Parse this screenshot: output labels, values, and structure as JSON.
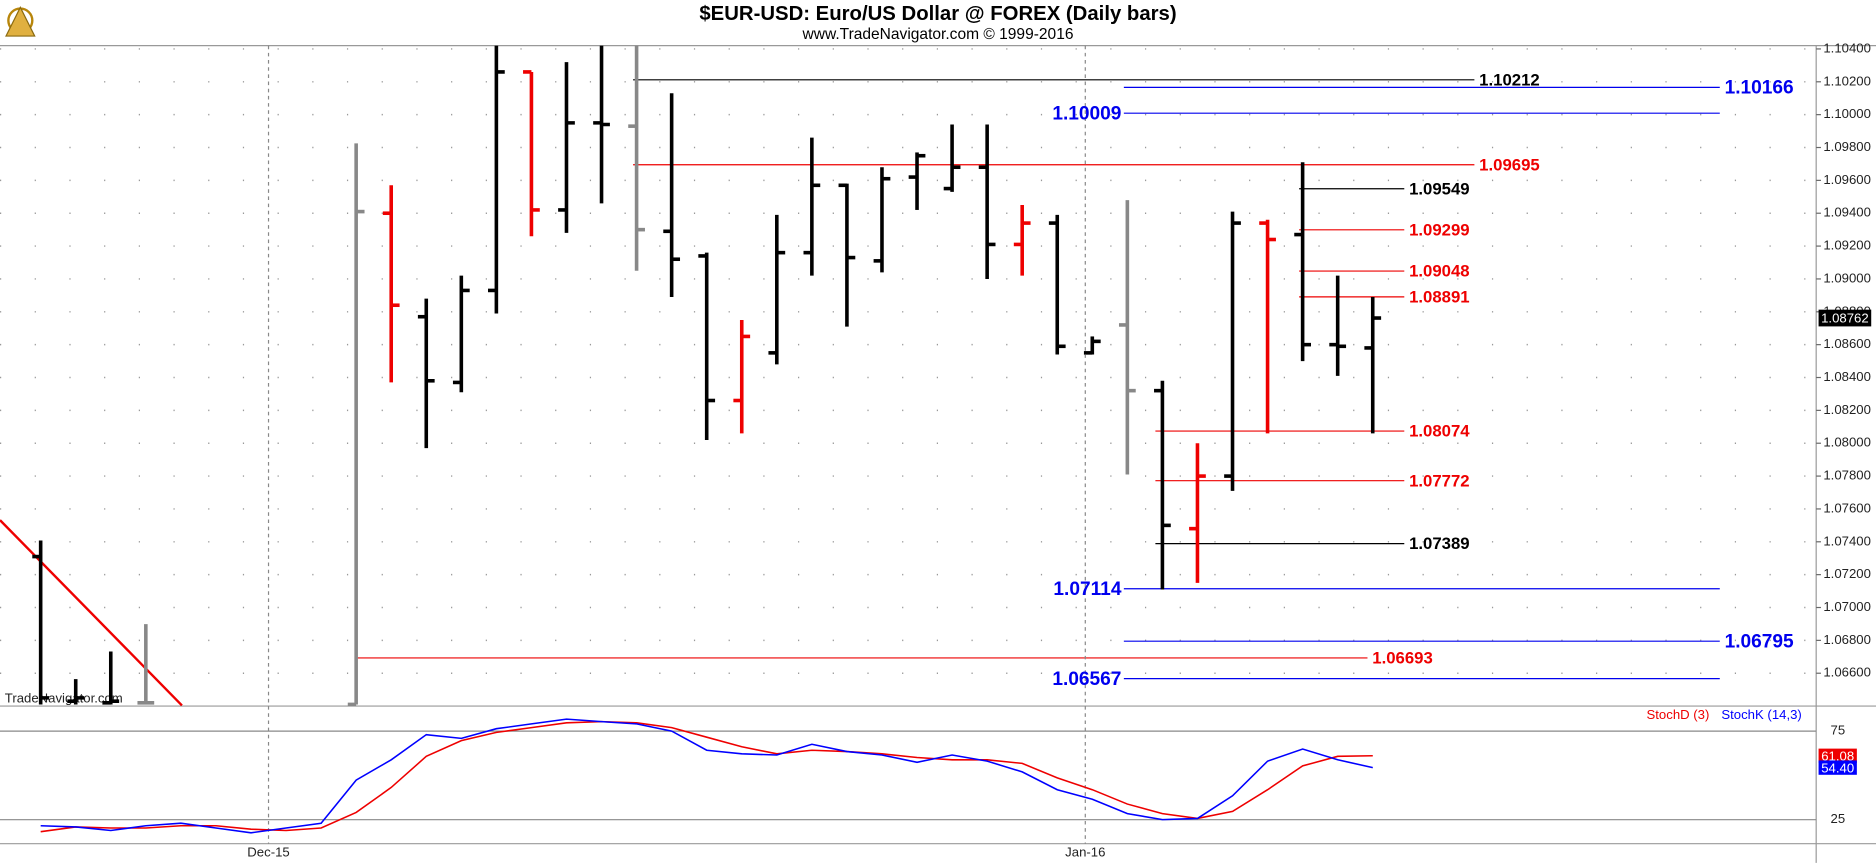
{
  "chart_data": [
    {
      "type": "ohlc",
      "title": "$EUR-USD:  Euro/US Dollar @ FOREX  (Daily bars)",
      "subtitle": "www.TradeNavigator.com © 1999-2016",
      "watermark": "TradeNavigator.com",
      "x": [
        0,
        1,
        2,
        3,
        9,
        10,
        11,
        12,
        13,
        14,
        15,
        16,
        17,
        18,
        19,
        20,
        21,
        22,
        23,
        24,
        25,
        26,
        27,
        28,
        29,
        30,
        31,
        32,
        33,
        34,
        35,
        36,
        37,
        38
      ],
      "open": [
        1.0731,
        1.0643,
        1.0642,
        1.0642,
        1.0641,
        1.094,
        1.0877,
        1.0837,
        1.0893,
        1.1026,
        1.0942,
        1.0995,
        1.0993,
        1.0929,
        1.0914,
        1.0826,
        1.0855,
        1.0916,
        1.0957,
        1.0911,
        1.0962,
        1.0955,
        1.0968,
        1.0921,
        1.0934,
        1.0855,
        1.0872,
        1.0832,
        1.0748,
        1.078,
        1.0934,
        1.0927,
        1.086,
        1.0858
      ],
      "high": [
        1.07408,
        1.06564,
        1.06732,
        1.06899,
        1.09825,
        1.0957,
        1.0888,
        1.0902,
        1.1042,
        1.1026,
        1.1032,
        1.1042,
        1.1042,
        1.1013,
        1.0916,
        1.0875,
        1.0939,
        1.0986,
        1.0958,
        1.0968,
        1.0977,
        1.0994,
        1.0994,
        1.0945,
        1.0939,
        1.0865,
        1.0948,
        1.0838,
        1.08,
        1.0941,
        1.0936,
        1.0971,
        1.0902,
        1.0889
      ],
      "low": [
        1.0641,
        1.0641,
        1.0641,
        1.0641,
        1.0641,
        1.0837,
        1.0797,
        1.0831,
        1.0879,
        1.0926,
        1.0928,
        1.0946,
        1.0905,
        1.0889,
        1.0802,
        1.0806,
        1.0848,
        1.0902,
        1.0871,
        1.0904,
        1.0942,
        1.0953,
        1.09,
        1.0902,
        1.0854,
        1.0854,
        1.0781,
        1.0711,
        1.0715,
        1.0771,
        1.0806,
        1.085,
        1.0841,
        1.0806
      ],
      "close": [
        1.0645,
        1.0645,
        1.0643,
        1.0642,
        1.0941,
        1.0884,
        1.0838,
        1.0893,
        1.1026,
        1.0942,
        1.0995,
        1.0994,
        1.093,
        1.0912,
        1.0826,
        1.0865,
        1.0916,
        1.0957,
        1.0913,
        1.0961,
        1.0975,
        1.0968,
        1.0921,
        1.0934,
        1.0859,
        1.0862,
        1.0832,
        1.075,
        1.078,
        1.0934,
        1.0924,
        1.086,
        1.0859,
        1.08762
      ],
      "colors": [
        "#000",
        "#000",
        "#000",
        "#888",
        "#888",
        "#e00",
        "#000",
        "#000",
        "#000",
        "#e00",
        "#000",
        "#000",
        "#888",
        "#000",
        "#000",
        "#e00",
        "#000",
        "#000",
        "#000",
        "#000",
        "#000",
        "#000",
        "#000",
        "#e00",
        "#000",
        "#000",
        "#888",
        "#000",
        "#e00",
        "#000",
        "#e00",
        "#000",
        "#000",
        "#000"
      ],
      "xlim": [
        -1.16,
        50.65
      ],
      "xticks": [
        {
          "value": 6.5,
          "label": "Dec-15"
        },
        {
          "value": 29.8,
          "label": "Jan-16"
        }
      ],
      "ylim": [
        1.064,
        1.1042
      ],
      "yticks": [
        {
          "value": 1.066,
          "label": "1.06600"
        },
        {
          "value": 1.068,
          "label": "1.06800"
        },
        {
          "value": 1.07,
          "label": "1.07000"
        },
        {
          "value": 1.072,
          "label": "1.07200"
        },
        {
          "value": 1.074,
          "label": "1.07400"
        },
        {
          "value": 1.076,
          "label": "1.07600"
        },
        {
          "value": 1.078,
          "label": "1.07800"
        },
        {
          "value": 1.08,
          "label": "1.08000"
        },
        {
          "value": 1.082,
          "label": "1.08200"
        },
        {
          "value": 1.084,
          "label": "1.08400"
        },
        {
          "value": 1.086,
          "label": "1.08600"
        },
        {
          "value": 1.088,
          "label": "1.08800"
        },
        {
          "value": 1.09,
          "label": "1.09000"
        },
        {
          "value": 1.092,
          "label": "1.09200"
        },
        {
          "value": 1.094,
          "label": "1.09400"
        },
        {
          "value": 1.096,
          "label": "1.09600"
        },
        {
          "value": 1.098,
          "label": "1.09800"
        },
        {
          "value": 1.1,
          "label": "1.10000"
        },
        {
          "value": 1.102,
          "label": "1.10200"
        },
        {
          "value": 1.104,
          "label": "1.10400"
        }
      ],
      "grid": true,
      "levels": [
        {
          "value": 1.10212,
          "color": "#000",
          "from": 16.9,
          "to": 40.9,
          "label_side": "right"
        },
        {
          "value": 1.10166,
          "color": "#00e",
          "from": 30.9,
          "to": 47.9,
          "label_side": "right"
        },
        {
          "value": 1.10009,
          "color": "#00e",
          "from": 30.9,
          "to": 47.9,
          "label_side": "left"
        },
        {
          "value": 1.09695,
          "color": "#e00",
          "from": 16.9,
          "to": 40.9,
          "label_side": "right"
        },
        {
          "value": 1.09549,
          "color": "#000",
          "from": 35.9,
          "to": 38.9,
          "label_side": "right"
        },
        {
          "value": 1.09299,
          "color": "#e00",
          "from": 35.9,
          "to": 38.9,
          "label_side": "right"
        },
        {
          "value": 1.09048,
          "color": "#e00",
          "from": 35.9,
          "to": 38.9,
          "label_side": "right"
        },
        {
          "value": 1.08891,
          "color": "#e00",
          "from": 35.9,
          "to": 38.9,
          "label_side": "right"
        },
        {
          "value": 1.08074,
          "color": "#e00",
          "from": 31.8,
          "to": 38.9,
          "label_side": "right"
        },
        {
          "value": 1.07772,
          "color": "#e00",
          "from": 31.8,
          "to": 38.9,
          "label_side": "right"
        },
        {
          "value": 1.07389,
          "color": "#000",
          "from": 31.8,
          "to": 38.9,
          "label_side": "right"
        },
        {
          "value": 1.07114,
          "color": "#00e",
          "from": 30.9,
          "to": 47.9,
          "label_side": "left"
        },
        {
          "value": 1.06795,
          "color": "#00e",
          "from": 30.9,
          "to": 47.9,
          "label_side": "right"
        },
        {
          "value": 1.06693,
          "color": "#e00",
          "from": 9.0,
          "to": 37.85,
          "label_side": "right"
        },
        {
          "value": 1.06567,
          "color": "#00e",
          "from": 30.9,
          "to": 47.9,
          "label_side": "left"
        }
      ],
      "trendline": {
        "color": "#e00",
        "x": [
          -1.16,
          4.03
        ],
        "y": [
          1.07532,
          1.06404
        ]
      },
      "current_price": 1.08762
    },
    {
      "type": "line",
      "legend": "top-right",
      "grid": true,
      "x": [
        0,
        1,
        2,
        3,
        4,
        5,
        6,
        7,
        8,
        9,
        10,
        11,
        12,
        13,
        14,
        15,
        16,
        17,
        18,
        19,
        20,
        21,
        22,
        23,
        24,
        25,
        26,
        27,
        28,
        29,
        30,
        31,
        32,
        33,
        34,
        35,
        36,
        37,
        38
      ],
      "xlim": [
        -1.16,
        50.65
      ],
      "ylim": [
        12.8,
        85.1
      ],
      "yticks": [
        25,
        75
      ],
      "series": [
        {
          "name": "StochD (3)",
          "color": "#e00",
          "current_label": "61.08",
          "values": [
            18.2,
            20.9,
            20.3,
            20.3,
            21.6,
            21.6,
            19.6,
            18.9,
            20.3,
            29.1,
            43.2,
            60.8,
            69.6,
            74.3,
            77.0,
            79.7,
            80.4,
            79.7,
            77.0,
            71.6,
            66.2,
            62.2,
            64.2,
            63.5,
            62.2,
            60.1,
            58.8,
            58.8,
            56.8,
            48.6,
            41.9,
            33.8,
            28.4,
            25.7,
            29.7,
            41.9,
            55.4,
            60.8,
            61.08
          ]
        },
        {
          "name": "StochK (14,3)",
          "color": "#00f",
          "current_label": "54.40",
          "values": [
            21.6,
            20.9,
            18.9,
            21.6,
            23.0,
            20.3,
            17.6,
            20.3,
            23.0,
            47.3,
            58.8,
            73.0,
            70.9,
            76.4,
            79.1,
            81.8,
            80.4,
            79.1,
            75.0,
            64.2,
            62.2,
            61.5,
            67.6,
            63.5,
            61.5,
            57.4,
            61.5,
            58.1,
            52.0,
            41.9,
            36.5,
            28.4,
            25.0,
            25.7,
            38.5,
            58.1,
            64.9,
            58.8,
            54.4
          ]
        }
      ]
    }
  ]
}
